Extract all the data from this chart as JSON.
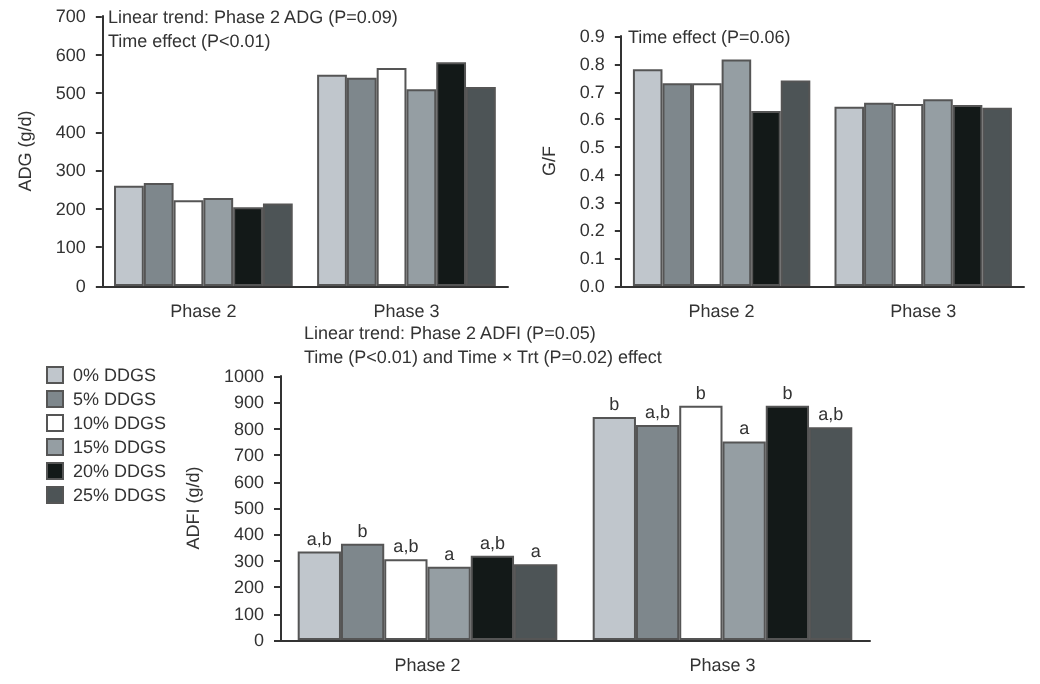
{
  "chart_data": [
    {
      "type": "bar",
      "ylabel": "ADG (g/d)",
      "categories": [
        "Phase 2",
        "Phase 3"
      ],
      "ylim": [
        0,
        700
      ],
      "yticks": [
        0,
        100,
        200,
        300,
        400,
        500,
        600,
        700
      ],
      "grid": false,
      "legend": false,
      "annotations": [
        "Linear trend: Phase 2 ADG (P=0.09)",
        "Time effect (P<0.01)"
      ],
      "series": [
        {
          "color": "#c0c6cc",
          "values": [
            260,
            548
          ]
        },
        {
          "color": "#7e878c",
          "values": [
            267,
            540
          ]
        },
        {
          "color": "#ffffff",
          "values": [
            222,
            565
          ]
        },
        {
          "color": "#959ea3",
          "values": [
            228,
            510
          ]
        },
        {
          "color": "#131918",
          "values": [
            204,
            580
          ]
        },
        {
          "color": "#4d5456",
          "values": [
            214,
            516
          ]
        }
      ]
    },
    {
      "type": "bar",
      "ylabel": "G/F",
      "categories": [
        "Phase 2",
        "Phase 3"
      ],
      "ylim": [
        0,
        0.9
      ],
      "yticks": [
        {
          "value": 0,
          "label": "0.0"
        },
        0.1,
        0.2,
        0.3,
        0.4,
        0.5,
        0.6,
        0.7,
        0.8,
        0.9
      ],
      "grid": false,
      "legend": false,
      "annotations": [
        "Time effect (P=0.06)"
      ],
      "series": [
        {
          "color": "#c0c6cc",
          "values": [
            0.78,
            0.645
          ]
        },
        {
          "color": "#7e878c",
          "values": [
            0.73,
            0.66
          ]
        },
        {
          "color": "#ffffff",
          "values": [
            0.73,
            0.655
          ]
        },
        {
          "color": "#959ea3",
          "values": [
            0.815,
            0.672
          ]
        },
        {
          "color": "#131918",
          "values": [
            0.63,
            0.652
          ]
        },
        {
          "color": "#4d5456",
          "values": [
            0.74,
            0.642
          ]
        }
      ]
    },
    {
      "type": "bar",
      "ylabel": "ADFI (g/d)",
      "categories": [
        "Phase 2",
        "Phase 3"
      ],
      "ylim": [
        0,
        1000
      ],
      "yticks": [
        0,
        100,
        200,
        300,
        400,
        500,
        600,
        700,
        800,
        900,
        1000
      ],
      "grid": false,
      "legend": "left",
      "annotations": [
        "Linear trend: Phase 2 ADFI (P=0.05)",
        "Time (P<0.01) and Time × Trt (P=0.02) effect"
      ],
      "series": [
        {
          "name": "0% DDGS",
          "color": "#c0c6cc",
          "values": [
            335,
            845
          ],
          "value_labels": [
            "a,b",
            "b"
          ]
        },
        {
          "name": "5% DDGS",
          "color": "#7e878c",
          "values": [
            365,
            814
          ],
          "value_labels": [
            "b",
            "a,b"
          ]
        },
        {
          "name": "10% DDGS",
          "color": "#ffffff",
          "values": [
            306,
            887
          ],
          "value_labels": [
            "a,b",
            "b"
          ]
        },
        {
          "name": "15% DDGS",
          "color": "#959ea3",
          "values": [
            277,
            752
          ],
          "value_labels": [
            "a",
            "a"
          ]
        },
        {
          "name": "20% DDGS",
          "color": "#131918",
          "values": [
            319,
            887
          ],
          "value_labels": [
            "a,b",
            "b"
          ]
        },
        {
          "name": "25% DDGS",
          "color": "#4d5456",
          "values": [
            287,
            806
          ],
          "value_labels": [
            "a",
            "a,b"
          ]
        }
      ]
    }
  ]
}
